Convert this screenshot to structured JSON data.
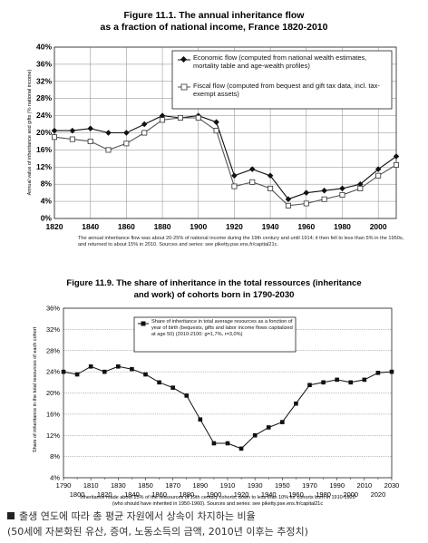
{
  "chart_data": [
    {
      "type": "line",
      "title": "Figure 11.1. The annual inheritance flow",
      "subtitle": "as a fraction of national income, France 1820-2010",
      "ylabel": "Annual value of inheritance and gifts (% national income)",
      "xlabel": "",
      "xlim": [
        1820,
        2010
      ],
      "ylim": [
        0,
        40
      ],
      "x_ticks": [
        "1820",
        "1840",
        "1860",
        "1880",
        "1900",
        "1920",
        "1940",
        "1960",
        "1980",
        "2000"
      ],
      "y_ticks": [
        "0%",
        "4%",
        "8%",
        "12%",
        "16%",
        "20%",
        "24%",
        "28%",
        "32%",
        "36%",
        "40%"
      ],
      "grid": true,
      "legend_position": "top-right",
      "series": [
        {
          "name": "Economic flow (computed from national wealth estimates, mortality table and age-wealth profiles)",
          "marker": "diamond",
          "color": "#111111",
          "x": [
            1820,
            1830,
            1840,
            1850,
            1860,
            1870,
            1880,
            1890,
            1900,
            1910,
            1920,
            1930,
            1940,
            1950,
            1960,
            1970,
            1980,
            1990,
            2000,
            2010
          ],
          "y": [
            20.5,
            20.5,
            21,
            20,
            20,
            22,
            24,
            23.5,
            24,
            22.5,
            10,
            11.5,
            10,
            4.5,
            6,
            6.5,
            7,
            8,
            11.5,
            14.5
          ]
        },
        {
          "name": "Fiscal flow (computed from bequest and gift tax data, incl. tax-exempt assets)",
          "marker": "square-open",
          "color": "#555555",
          "x": [
            1820,
            1830,
            1840,
            1850,
            1860,
            1870,
            1880,
            1890,
            1900,
            1910,
            1920,
            1930,
            1940,
            1950,
            1960,
            1970,
            1980,
            1990,
            2000,
            2010
          ],
          "y": [
            19,
            18.5,
            18,
            16,
            17.5,
            20,
            23,
            23.5,
            23.5,
            20.5,
            7.5,
            8.5,
            7,
            3,
            3.5,
            4.5,
            5.5,
            7,
            10,
            12.5
          ]
        }
      ],
      "note": "The annual inheritance flow was about 20-25% of national income during the 19th century and until 1914; it then fell to less than 5% in the 1950s, and returned to about 15% in 2010. Sources and series: see piketty.pse.ens.fr/capital21c."
    },
    {
      "type": "line",
      "title": "Figure 11.9. The share of inheritance in the total ressources (inheritance",
      "subtitle": "and work) of cohorts born in 1790-2030",
      "ylabel": "Share of inheritance in the total resources of each cohort",
      "xlabel": "",
      "xlim": [
        1790,
        2030
      ],
      "ylim": [
        4,
        36
      ],
      "x_ticks": [
        "1790",
        "1810",
        "1830",
        "1850",
        "1870",
        "1890",
        "1910",
        "1930",
        "1950",
        "1970",
        "1990",
        "2010",
        "2030"
      ],
      "x_ticks_minor": [
        "1800",
        "1820",
        "1840",
        "1860",
        "1880",
        "1900",
        "1920",
        "1940",
        "1960",
        "1980",
        "2000",
        "2020"
      ],
      "y_ticks": [
        "4%",
        "8%",
        "12%",
        "16%",
        "20%",
        "24%",
        "28%",
        "32%",
        "36%"
      ],
      "grid": "horizontal",
      "legend_position": "top-center",
      "series": [
        {
          "name": "Share of inheritance in total average resources as a fonction of year of birth (bequests, gifts and labor income flows capitalized at age 50) (2010-2100: g=1,7%, r=3,0%)",
          "marker": "square",
          "color": "#111111",
          "x": [
            1790,
            1800,
            1810,
            1820,
            1830,
            1840,
            1850,
            1860,
            1870,
            1880,
            1890,
            1900,
            1910,
            1920,
            1930,
            1940,
            1950,
            1960,
            1970,
            1980,
            1990,
            2000,
            2010,
            2020,
            2030
          ],
          "y": [
            24,
            23.5,
            25,
            24,
            25,
            24.5,
            23.5,
            22,
            21,
            19.5,
            15,
            10.5,
            10.5,
            9.5,
            12,
            13.5,
            14.5,
            18,
            21.5,
            22,
            22.5,
            22,
            22.5,
            23.8,
            24
          ]
        }
      ],
      "note_line1": "Inheritance made about 25% of the ressources of 19th century cohorts, down to less than 10% for cohorts born in 1910-1920",
      "note_line2": "(who should have inherited in 1950-1960). Sources and series: see piketty.pse.ens.fr/capital21c"
    }
  ],
  "caption_line1": "출생 연도에 따라 총 평균 자원에서 상속이 차지하는 비율",
  "caption_line2": "(50세에 자본화된 유산, 증여, 노동소득의 금액, 2010년 이후는 추정치)"
}
